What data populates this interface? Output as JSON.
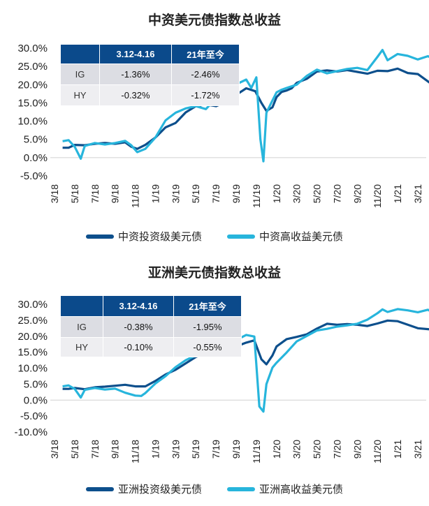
{
  "colors": {
    "ig": "#0d4f8c",
    "hy": "#27b5dc",
    "table_header": "#0b4a8b"
  },
  "chart_data": [
    {
      "type": "line",
      "title": "中资美元债指数总收益",
      "xlabel": "",
      "ylabel": "",
      "x_ticks": [
        "3/18",
        "5/18",
        "7/18",
        "9/18",
        "11/18",
        "1/19",
        "3/19",
        "5/19",
        "7/19",
        "9/19",
        "11/19",
        "1/20",
        "3/20",
        "5/20",
        "7/20",
        "9/20",
        "11/20",
        "1/21",
        "3/21"
      ],
      "y_ticks": [
        "30.0%",
        "25.0%",
        "20.0%",
        "15.0%",
        "10.0%",
        "5.0%",
        "0.0%",
        "-5.0%"
      ],
      "ylim": [
        -5,
        30
      ],
      "grid": false,
      "legend_position": "bottom",
      "series": [
        {
          "name": "中资投资级美元债",
          "x": [
            0.8,
            1.4,
            2,
            3,
            4,
            5,
            6,
            7,
            7.6,
            8.2,
            9,
            10,
            11,
            12,
            13,
            14,
            15,
            16,
            17,
            18,
            19,
            19.9,
            20.5,
            21,
            21.6,
            22,
            22.5,
            23,
            23.5,
            24,
            25,
            26,
            27,
            28,
            29,
            30,
            31,
            32,
            33,
            34,
            35,
            36,
            37.4
          ],
          "y": [
            2.7,
            2.7,
            3.5,
            3.4,
            3.8,
            4.0,
            3.8,
            4.2,
            3.0,
            2.4,
            3.5,
            5.5,
            8.3,
            9.5,
            12.4,
            14.1,
            14.6,
            14.1,
            15.3,
            17.2,
            19.0,
            18.2,
            15.0,
            12.8,
            13.8,
            16.6,
            18.0,
            18.4,
            19.0,
            20.5,
            21.6,
            23.6,
            23.9,
            23.6,
            24.0,
            23.5,
            23.0,
            23.8,
            23.7,
            24.4,
            23.2,
            22.9,
            20.1
          ]
        },
        {
          "name": "中资高收益美元债",
          "x": [
            0.8,
            1.4,
            2,
            2.6,
            3,
            4,
            5,
            6,
            7,
            7.6,
            8.2,
            9,
            10,
            11,
            12,
            13,
            14,
            15,
            16,
            17,
            18,
            19,
            19.5,
            20,
            20.4,
            20.7,
            21,
            21.6,
            22,
            22.5,
            23,
            24,
            25,
            26,
            27,
            28,
            29,
            30,
            31,
            32,
            32.5,
            33,
            34,
            35,
            36,
            37,
            37.4
          ],
          "y": [
            4.5,
            4.8,
            3.0,
            -0.3,
            3.2,
            4.0,
            3.6,
            4.0,
            4.6,
            3.4,
            1.5,
            2.4,
            5.5,
            10.2,
            12.3,
            13.5,
            14.1,
            13.3,
            16.3,
            17.1,
            20.1,
            21.4,
            19.1,
            22.0,
            5.0,
            -1.0,
            12.3,
            15.7,
            17.9,
            18.6,
            19.1,
            20.0,
            22.4,
            24.1,
            23.1,
            23.7,
            24.3,
            24.6,
            24.0,
            27.6,
            29.5,
            26.7,
            28.4,
            27.9,
            26.9,
            27.8,
            27.3
          ]
        }
      ],
      "table": {
        "headers": [
          "",
          "3.12-4.16",
          "21年至今"
        ],
        "rows": [
          [
            "IG",
            "-1.36%",
            "-2.46%"
          ],
          [
            "HY",
            "-0.32%",
            "-1.72%"
          ]
        ]
      }
    },
    {
      "type": "line",
      "title": "亚洲美元债指数总收益",
      "xlabel": "",
      "ylabel": "",
      "x_ticks": [
        "3/18",
        "5/18",
        "7/18",
        "9/18",
        "11/18",
        "1/19",
        "3/19",
        "5/19",
        "7/19",
        "9/19",
        "11/19",
        "1/20",
        "3/20",
        "5/20",
        "7/20",
        "9/20",
        "11/20",
        "1/21",
        "3/21"
      ],
      "y_ticks": [
        "30.0%",
        "25.0%",
        "20.0%",
        "15.0%",
        "10.0%",
        "5.0%",
        "0.0%",
        "-5.0%",
        "-10.0%"
      ],
      "ylim": [
        -10,
        30
      ],
      "grid": false,
      "legend_position": "bottom",
      "series": [
        {
          "name": "亚洲投资级美元债",
          "x": [
            0.8,
            1.4,
            2,
            3,
            4,
            5,
            6,
            7,
            8,
            9,
            10,
            11,
            12,
            13,
            14,
            15,
            16,
            17,
            18,
            19,
            19.8,
            20.5,
            21,
            21.6,
            22,
            23,
            24,
            25,
            26,
            27,
            28,
            29,
            30,
            31,
            32,
            33,
            34,
            35,
            36,
            37.4
          ],
          "y": [
            3.5,
            3.5,
            3.8,
            3.4,
            4.0,
            4.2,
            4.5,
            4.8,
            4.3,
            4.3,
            6.0,
            8.0,
            9.5,
            11.5,
            13.5,
            14.8,
            14.1,
            15.5,
            16.8,
            18.0,
            18.7,
            12.8,
            11.2,
            14.0,
            16.8,
            19.1,
            19.8,
            20.6,
            22.4,
            23.9,
            23.6,
            23.8,
            23.6,
            23.2,
            24.0,
            24.9,
            24.7,
            23.6,
            22.5,
            22.1
          ]
        },
        {
          "name": "亚洲高收益美元债",
          "x": [
            0.8,
            1.4,
            2,
            2.6,
            3,
            4,
            5,
            6,
            7,
            8,
            8.6,
            9,
            10,
            11,
            12,
            13,
            14,
            15,
            16,
            17,
            18,
            19,
            19.8,
            20.3,
            20.7,
            21,
            21.6,
            22,
            23,
            24,
            25,
            26,
            27,
            28,
            29,
            30,
            31,
            32,
            32.5,
            33,
            34,
            35,
            36,
            37,
            37.4
          ],
          "y": [
            4.3,
            4.6,
            3.5,
            0.8,
            3.2,
            3.8,
            3.3,
            3.6,
            2.3,
            1.4,
            1.3,
            2.2,
            5.2,
            7.5,
            10.3,
            12.5,
            14.0,
            14.4,
            16.6,
            17.0,
            18.8,
            20.4,
            19.9,
            -2.0,
            -3.6,
            5.0,
            10.2,
            11.7,
            14.9,
            18.4,
            20.1,
            21.8,
            22.3,
            23.0,
            23.4,
            23.9,
            25.2,
            27.2,
            28.4,
            27.6,
            28.5,
            28.1,
            27.5,
            28.3,
            27.6
          ]
        }
      ],
      "table": {
        "headers": [
          "",
          "3.12-4.16",
          "21年至今"
        ],
        "rows": [
          [
            "IG",
            "-0.38%",
            "-1.95%"
          ],
          [
            "HY",
            "-0.10%",
            "-0.55%"
          ]
        ]
      }
    }
  ]
}
